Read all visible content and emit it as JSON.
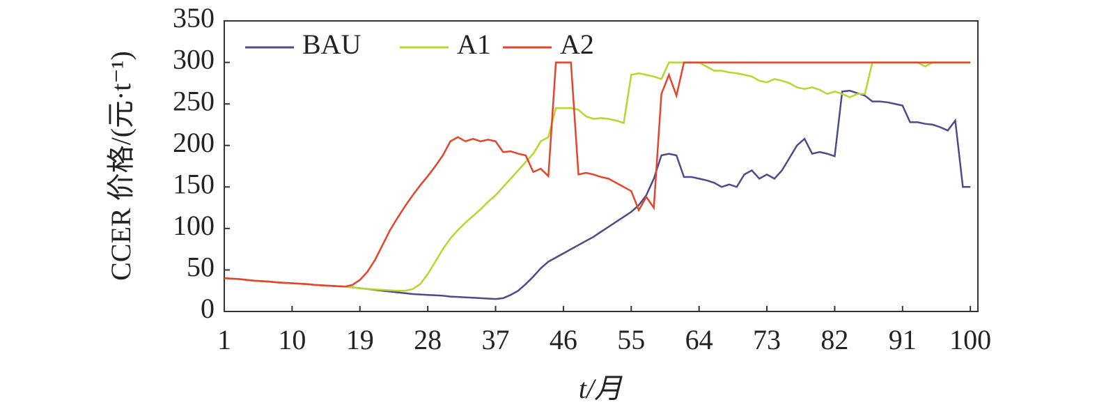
{
  "chart_data": {
    "type": "line",
    "xlabel": "t/月",
    "ylabel": "CCER 价格/(元·t⁻¹)",
    "x": [
      1,
      2,
      3,
      4,
      5,
      6,
      7,
      8,
      9,
      10,
      11,
      12,
      13,
      14,
      15,
      16,
      17,
      18,
      19,
      20,
      21,
      22,
      23,
      24,
      25,
      26,
      27,
      28,
      29,
      30,
      31,
      32,
      33,
      34,
      35,
      36,
      37,
      38,
      39,
      40,
      41,
      42,
      43,
      44,
      45,
      46,
      47,
      48,
      49,
      50,
      51,
      52,
      53,
      54,
      55,
      56,
      57,
      58,
      59,
      60,
      61,
      62,
      63,
      64,
      65,
      66,
      67,
      68,
      69,
      70,
      71,
      72,
      73,
      74,
      75,
      76,
      77,
      78,
      79,
      80,
      81,
      82,
      83,
      84,
      85,
      86,
      87,
      88,
      89,
      90,
      91,
      92,
      93,
      94,
      95,
      96,
      97,
      98,
      99,
      100
    ],
    "series": [
      {
        "name": "BAU",
        "color": "#4d4a8c",
        "values": [
          40,
          39.5,
          39,
          38,
          37,
          36.5,
          36,
          35,
          34.5,
          34,
          33.5,
          33,
          32,
          31.5,
          31,
          30.5,
          30,
          29,
          28,
          27,
          26,
          25,
          24,
          23,
          22,
          21,
          20.5,
          20,
          19.5,
          19,
          18,
          17.5,
          17,
          16.5,
          16,
          15.5,
          15,
          16,
          20,
          25,
          33,
          42,
          52,
          60,
          65,
          70,
          75,
          80,
          85,
          90,
          96,
          102,
          108,
          114,
          120,
          128,
          140,
          160,
          188,
          190,
          188,
          162,
          162,
          160,
          158,
          155,
          150,
          153,
          150,
          165,
          170,
          160,
          165,
          160,
          170,
          185,
          200,
          208,
          190,
          192,
          190,
          187,
          265,
          266,
          263,
          260,
          253,
          253,
          252,
          250,
          248,
          228,
          228,
          226,
          225,
          222,
          218,
          230,
          150,
          150
        ]
      },
      {
        "name": "A1",
        "color": "#b8d62c",
        "values": [
          40,
          39.5,
          39,
          38,
          37,
          36.5,
          36,
          35,
          34.5,
          34,
          33.5,
          33,
          32,
          31.5,
          31,
          30.5,
          30,
          29,
          28,
          27,
          26.5,
          26,
          25.5,
          25,
          25,
          27,
          33,
          45,
          60,
          75,
          88,
          98,
          107,
          115,
          123,
          132,
          140,
          150,
          160,
          170,
          180,
          190,
          205,
          210,
          245,
          245,
          245,
          243,
          235,
          232,
          233,
          232,
          230,
          227,
          285,
          287,
          285,
          283,
          280,
          300,
          300,
          300,
          300,
          300,
          295,
          290,
          290,
          288,
          287,
          285,
          283,
          278,
          276,
          280,
          278,
          275,
          270,
          268,
          270,
          267,
          262,
          265,
          262,
          258,
          262,
          262,
          300,
          300,
          300,
          300,
          300,
          300,
          300,
          295,
          300,
          300,
          300,
          300,
          300,
          300
        ]
      },
      {
        "name": "A2",
        "color": "#e5432c",
        "values": [
          40,
          39.5,
          39,
          38,
          37,
          36.5,
          36,
          35,
          34.5,
          34,
          33.5,
          33,
          32,
          31.5,
          31,
          30.5,
          30,
          32,
          38,
          48,
          62,
          80,
          98,
          113,
          127,
          140,
          152,
          163,
          175,
          188,
          205,
          210,
          205,
          208,
          205,
          207,
          205,
          192,
          193,
          190,
          188,
          168,
          172,
          163,
          300,
          300,
          300,
          165,
          167,
          165,
          162,
          160,
          155,
          150,
          145,
          122,
          138,
          125,
          262,
          285,
          260,
          300,
          300,
          300,
          300,
          300,
          300,
          300,
          300,
          300,
          300,
          300,
          300,
          300,
          300,
          300,
          300,
          300,
          300,
          300,
          300,
          300,
          300,
          300,
          300,
          300,
          300,
          300,
          300,
          300,
          300,
          300,
          300,
          300,
          300,
          300,
          300,
          300,
          300,
          300
        ]
      }
    ],
    "xlim": [
      1,
      101
    ],
    "xticks": [
      1,
      10,
      19,
      28,
      37,
      46,
      55,
      64,
      73,
      82,
      91,
      100
    ],
    "ylim": [
      0,
      350
    ],
    "yticks": [
      0,
      50,
      100,
      150,
      200,
      250,
      300,
      350
    ],
    "legend": "upper left",
    "grid": false
  }
}
